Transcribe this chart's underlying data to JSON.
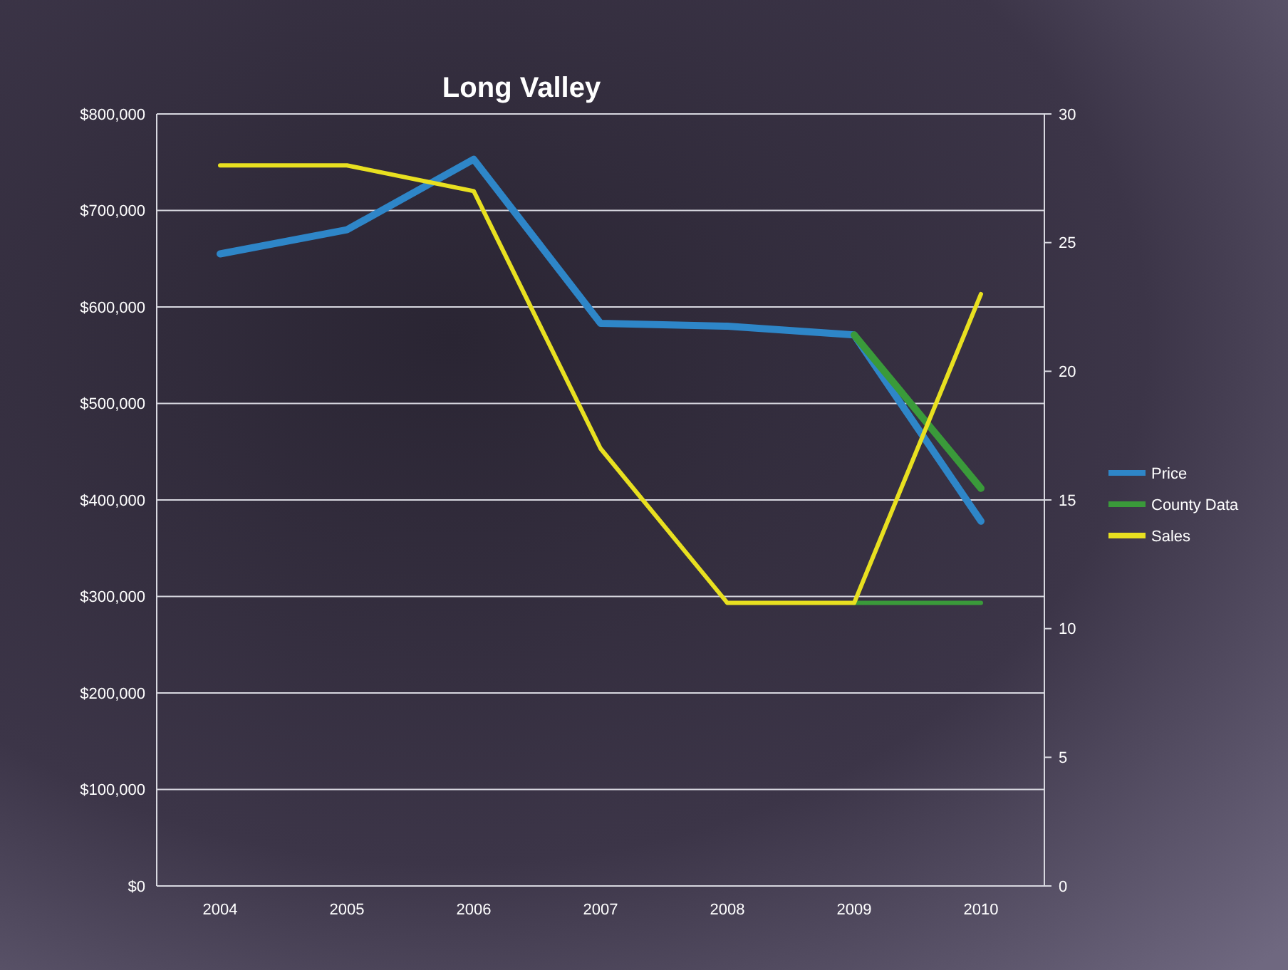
{
  "chart_data": {
    "type": "line",
    "title": "Long Valley",
    "categories": [
      "2004",
      "2005",
      "2006",
      "2007",
      "2008",
      "2009",
      "2010"
    ],
    "series": [
      {
        "name": "Price",
        "color": "#2e86c8",
        "values": [
          655000,
          680000,
          753000,
          583000,
          580000,
          571000,
          378000
        ]
      },
      {
        "name": "County Data",
        "color": "#3a9a3a",
        "values": [
          null,
          null,
          null,
          null,
          null,
          571000,
          412000
        ]
      },
      {
        "color": "#3a9a3a",
        "axis": "y2",
        "values": [
          null,
          null,
          null,
          null,
          null,
          11,
          11
        ]
      },
      {
        "name": "Sales",
        "color": "#e8e020",
        "axis": "y2",
        "values": [
          28,
          28,
          27,
          17,
          11,
          11,
          23
        ]
      }
    ],
    "ylim": [
      0,
      800000
    ],
    "yticks": [
      {
        "value": 0,
        "label": "$0"
      },
      {
        "value": 100000,
        "label": "$100,000"
      },
      {
        "value": 200000,
        "label": "$200,000"
      },
      {
        "value": 300000,
        "label": "$300,000"
      },
      {
        "value": 400000,
        "label": "$400,000"
      },
      {
        "value": 500000,
        "label": "$500,000"
      },
      {
        "value": 600000,
        "label": "$600,000"
      },
      {
        "value": 700000,
        "label": "$700,000"
      },
      {
        "value": 800000,
        "label": "$800,000"
      }
    ],
    "y2lim": [
      0,
      30
    ],
    "y2ticks": [
      0,
      5,
      10,
      15,
      20,
      25,
      30
    ],
    "grid": "y",
    "legend": "right",
    "marker": "none",
    "line_style": "solid"
  }
}
